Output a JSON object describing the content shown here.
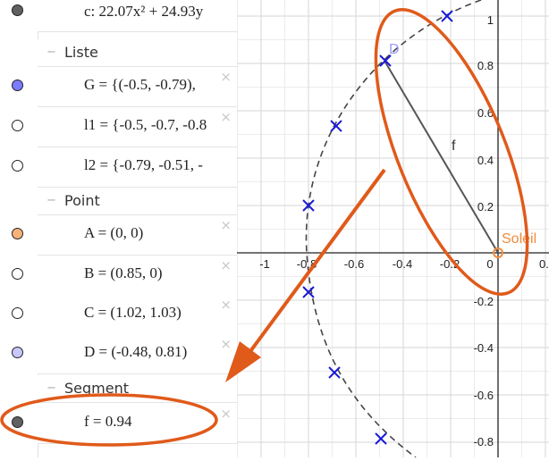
{
  "algebra": {
    "partial_row": {
      "expr": "c: 22.07x² + 24.93y",
      "color": "#606060"
    },
    "groups": [
      {
        "name": "Liste"
      },
      {
        "name": "Point"
      },
      {
        "name": "Segment"
      }
    ],
    "liste_items": [
      {
        "expr": "G = {(-0.5, -0.79),",
        "color": "#7b7bff",
        "filled": true
      },
      {
        "expr": "l1 = {-0.5, -0.7, -0.8",
        "color": "#ffffff",
        "filled": false
      },
      {
        "expr": "l2 = {-0.79, -0.51, -",
        "color": "#ffffff",
        "filled": false
      }
    ],
    "point_items": [
      {
        "expr": "A = (0, 0)",
        "color": "#f7b27a",
        "filled": true
      },
      {
        "expr": "B = (0.85, 0)",
        "color": "#ffffff",
        "filled": false
      },
      {
        "expr": "C = (1.02, 1.03)",
        "color": "#ffffff",
        "filled": false
      },
      {
        "expr": "D = (-0.48, 0.81)",
        "color": "#c8c8ff",
        "filled": true
      }
    ],
    "segment_items": [
      {
        "expr": "f = 0.94",
        "color": "#606060",
        "filled": true
      }
    ],
    "delete_glyph": "×"
  },
  "graph": {
    "x_ticks": [
      "-1",
      "-0.8",
      "-0.6",
      "-0.4",
      "-0.2",
      "0",
      "0."
    ],
    "y_ticks": [
      "1",
      "0.8",
      "0.6",
      "0.4",
      "0.2",
      "-0.2",
      "-0.4",
      "-0.6",
      "-0.8"
    ],
    "labels": {
      "sun": "Soleil",
      "point_d": "D",
      "segment_f": "f"
    },
    "colors": {
      "sun": "#f08c3c",
      "list_points": "#1a1ad6",
      "point_d": "#9a9aff",
      "segment": "#555555",
      "annotation": "#e05a1a"
    }
  }
}
